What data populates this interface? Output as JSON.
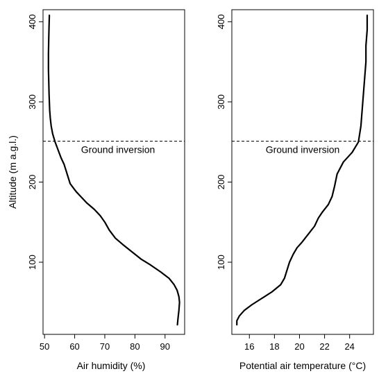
{
  "chart_data": [
    {
      "type": "line",
      "xlabel": "Air humidity (%)",
      "ylabel": "Altitude (m a.g.l.)",
      "xlim": [
        49.5,
        96.5
      ],
      "ylim": [
        10,
        415
      ],
      "xticks": [
        50,
        60,
        70,
        80,
        90
      ],
      "yticks": [
        100,
        200,
        300,
        400
      ],
      "grid": false,
      "series": [
        {
          "color": "#000000",
          "x": [
            94.1,
            94.3,
            94.6,
            94.8,
            94.6,
            94.0,
            93.0,
            91.3,
            88.5,
            85.0,
            82.0,
            79.0,
            76.0,
            73.5,
            71.5,
            70.0,
            68.5,
            66.5,
            64.0,
            62.0,
            60.5,
            59.5,
            58.5,
            58.0,
            57.5,
            57.0,
            56.5,
            55.5,
            54.5,
            53.5,
            52.7,
            52.2,
            51.9,
            51.7,
            51.6,
            51.5,
            51.4,
            51.3,
            51.3,
            51.4,
            51.5,
            51.6
          ],
          "y": [
            22,
            30,
            40,
            50,
            57,
            65,
            72,
            80,
            88,
            97,
            104,
            113,
            122,
            130,
            140,
            150,
            158,
            166,
            174,
            182,
            188,
            193,
            198,
            204,
            210,
            216,
            222,
            230,
            240,
            250,
            260,
            270,
            280,
            290,
            300,
            310,
            325,
            340,
            360,
            380,
            395,
            408
          ]
        }
      ],
      "annotations": [
        {
          "text": "Ground inversion",
          "y": 251,
          "line_style": "dashed"
        }
      ]
    },
    {
      "type": "line",
      "xlabel": "Potential air temperature (°C)",
      "ylabel": "",
      "xlim": [
        14.6,
        25.9
      ],
      "ylim": [
        10,
        415
      ],
      "xticks": [
        16,
        18,
        20,
        22,
        24
      ],
      "yticks": [
        100,
        200,
        300,
        400
      ],
      "grid": false,
      "series": [
        {
          "color": "#000000",
          "x": [
            15.0,
            15.0,
            15.2,
            15.6,
            16.2,
            17.0,
            17.8,
            18.5,
            18.8,
            19.0,
            19.2,
            19.5,
            19.8,
            20.2,
            20.7,
            21.2,
            21.5,
            21.8,
            22.3,
            22.6,
            22.8,
            23.0,
            23.5,
            24.2,
            24.7,
            24.9,
            25.0,
            25.1,
            25.2,
            25.3,
            25.3,
            25.4,
            25.4
          ],
          "y": [
            22,
            27,
            33,
            40,
            47,
            55,
            63,
            72,
            80,
            90,
            100,
            110,
            118,
            125,
            135,
            145,
            155,
            162,
            172,
            182,
            195,
            210,
            225,
            237,
            250,
            270,
            290,
            310,
            330,
            350,
            370,
            390,
            408
          ]
        }
      ],
      "annotations": [
        {
          "text": "Ground inversion",
          "y": 251,
          "line_style": "dashed"
        }
      ]
    }
  ]
}
